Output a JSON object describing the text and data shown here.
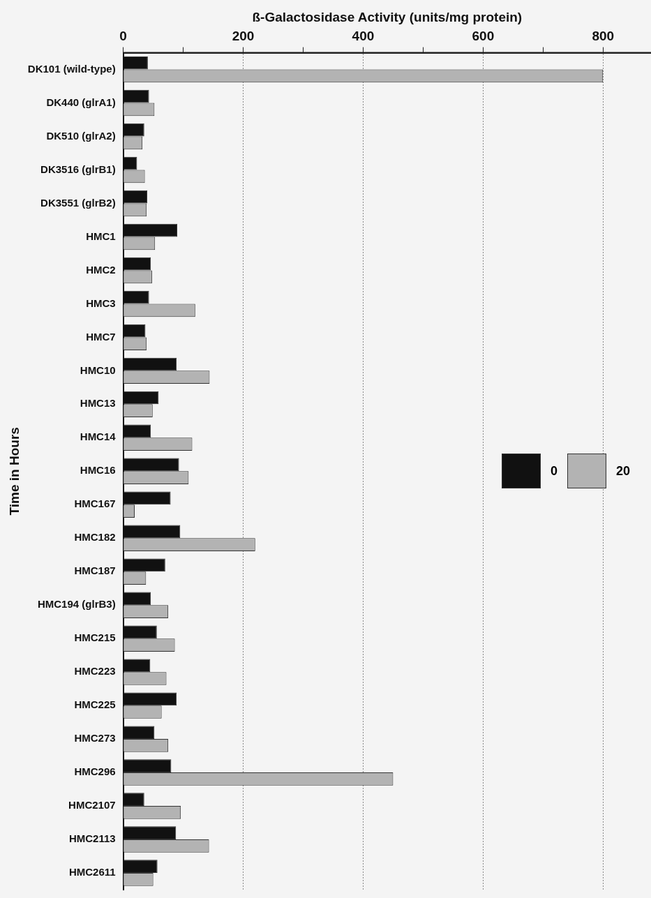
{
  "chart_data": {
    "type": "bar",
    "orientation": "horizontal",
    "xlabel": "ß-Galactosidase Activity (units/mg protein)",
    "ylabel": "Time in Hours",
    "categories": [
      "DK101 (wild-type)",
      "DK440 (glrA1)",
      "DK510 (glrA2)",
      "DK3516 (glrB1)",
      "DK3551 (glrB2)",
      "HMC1",
      "HMC2",
      "HMC3",
      "HMC7",
      "HMC10",
      "HMC13",
      "HMC14",
      "HMC16",
      "HMC167",
      "HMC182",
      "HMC187",
      "HMC194 (glrB3)",
      "HMC215",
      "HMC223",
      "HMC225",
      "HMC273",
      "HMC296",
      "HMC2107",
      "HMC2113",
      "HMC2611"
    ],
    "series": [
      {
        "name": "0",
        "color": "#111111",
        "values": [
          41,
          43,
          35,
          23,
          40,
          90,
          46,
          43,
          37,
          89,
          59,
          46,
          93,
          79,
          95,
          70,
          46,
          56,
          45,
          89,
          52,
          80,
          35,
          88,
          57
        ]
      },
      {
        "name": "20",
        "color": "#b3b3b3",
        "values": [
          800,
          52,
          32,
          36,
          39,
          53,
          48,
          120,
          39,
          144,
          49,
          115,
          109,
          19,
          220,
          38,
          75,
          86,
          72,
          64,
          75,
          450,
          96,
          143,
          50
        ]
      }
    ],
    "xlim": [
      0,
      880
    ],
    "xticks": [
      0,
      {
        "value": 100,
        "label": null
      },
      200,
      {
        "value": 300,
        "label": null
      },
      400,
      {
        "value": 500,
        "label": null
      },
      600,
      {
        "value": 700,
        "label": null
      },
      800
    ],
    "grid": "x",
    "legend": "right"
  }
}
